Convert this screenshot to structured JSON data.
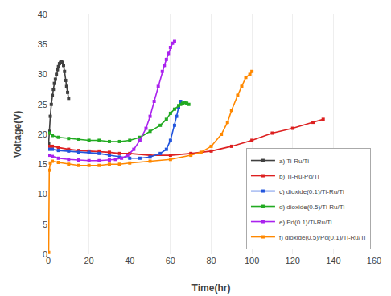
{
  "chart_data": {
    "type": "line",
    "xlabel": "Time(hr)",
    "ylabel": "Voltage(V)",
    "xlim": [
      0,
      160
    ],
    "ylim": [
      0,
      40
    ],
    "xticks": [
      0,
      20,
      40,
      60,
      80,
      100,
      120,
      140,
      160
    ],
    "yticks": [
      0,
      5,
      10,
      15,
      20,
      25,
      30,
      35,
      40
    ],
    "grid": "x",
    "legend": "lower right",
    "marker": "square",
    "series": [
      {
        "name": "a) Ti-Ru/Ti",
        "color": "#404040",
        "x": [
          0.2,
          0.5,
          1.0,
          1.5,
          2.0,
          2.5,
          3.0,
          3.5,
          4.0,
          4.5,
          5.0,
          5.5,
          6.0,
          6.5,
          7.0,
          7.5,
          8.0,
          8.5,
          9.0,
          9.5,
          10.0
        ],
        "values": [
          18.5,
          20.5,
          23.0,
          25.0,
          26.5,
          27.5,
          28.5,
          29.2,
          30.0,
          30.8,
          31.3,
          31.8,
          32.0,
          32.1,
          32.0,
          31.5,
          30.5,
          29.0,
          28.0,
          27.0,
          26.0
        ]
      },
      {
        "name": "b) Ti-Ru-Pd/Ti",
        "color": "#dd2020",
        "x": [
          0.5,
          2,
          5,
          10,
          15,
          20,
          25,
          30,
          35,
          40,
          50,
          60,
          70,
          80,
          90,
          100,
          110,
          120,
          130,
          135
        ],
        "values": [
          18.0,
          18.0,
          17.8,
          17.5,
          17.3,
          17.2,
          17.2,
          17.0,
          16.8,
          16.8,
          16.5,
          16.5,
          16.8,
          17.2,
          18.0,
          19.0,
          20.2,
          21.0,
          22.0,
          22.5
        ]
      },
      {
        "name": "c) dioxide(0.1)/Ti-Ru/Ti",
        "color": "#2255dd",
        "x": [
          0.5,
          2,
          5,
          10,
          15,
          20,
          25,
          30,
          35,
          40,
          45,
          50,
          55,
          58,
          60,
          62,
          63,
          64,
          65
        ],
        "values": [
          17.5,
          17.5,
          17.3,
          17.2,
          17.0,
          17.0,
          16.8,
          16.5,
          16.2,
          16.0,
          16.0,
          16.2,
          16.8,
          17.5,
          19.0,
          21.5,
          23.0,
          24.5,
          25.5
        ]
      },
      {
        "name": "d) dioxide(0.5)/Ti-Ru/Ti",
        "color": "#22aa22",
        "x": [
          0.5,
          2,
          5,
          10,
          15,
          20,
          25,
          30,
          35,
          40,
          45,
          50,
          55,
          58,
          60,
          62,
          64,
          65,
          66,
          67,
          68,
          69
        ],
        "values": [
          20.2,
          19.8,
          19.5,
          19.3,
          19.2,
          19.0,
          19.0,
          18.8,
          18.8,
          19.0,
          19.5,
          20.5,
          21.5,
          22.5,
          23.5,
          24.2,
          24.8,
          25.0,
          25.2,
          25.3,
          25.2,
          25.0
        ]
      },
      {
        "name": "e) Pd(0.1)/Ti-Ru/Ti",
        "color": "#aa22ee",
        "x": [
          0.5,
          2,
          5,
          10,
          15,
          20,
          25,
          30,
          33,
          36,
          39,
          42,
          45,
          48,
          50,
          52,
          54,
          56,
          57,
          58,
          59,
          60,
          61,
          62
        ],
        "values": [
          16.5,
          16.3,
          16.0,
          15.8,
          15.7,
          15.6,
          15.6,
          15.7,
          15.8,
          16.0,
          16.5,
          17.5,
          19.0,
          21.0,
          23.0,
          25.5,
          28.0,
          30.5,
          31.5,
          32.5,
          33.5,
          34.5,
          35.2,
          35.5
        ]
      },
      {
        "name": "f) dioxide(0.5)/Pd(0.1)/Ti-Ru/Ti",
        "color": "#ff8800",
        "x": [
          0.2,
          0.5,
          1.0,
          2,
          5,
          10,
          15,
          20,
          25,
          30,
          35,
          40,
          50,
          60,
          70,
          75,
          80,
          85,
          88,
          90,
          93,
          95,
          97,
          99,
          100
        ],
        "values": [
          0.3,
          14.0,
          15.2,
          15.5,
          15.3,
          15.0,
          14.8,
          14.8,
          14.8,
          15.0,
          15.0,
          15.2,
          15.5,
          15.8,
          16.5,
          17.0,
          18.0,
          20.0,
          22.0,
          24.0,
          26.5,
          28.0,
          29.5,
          30.0,
          30.5
        ]
      }
    ]
  }
}
